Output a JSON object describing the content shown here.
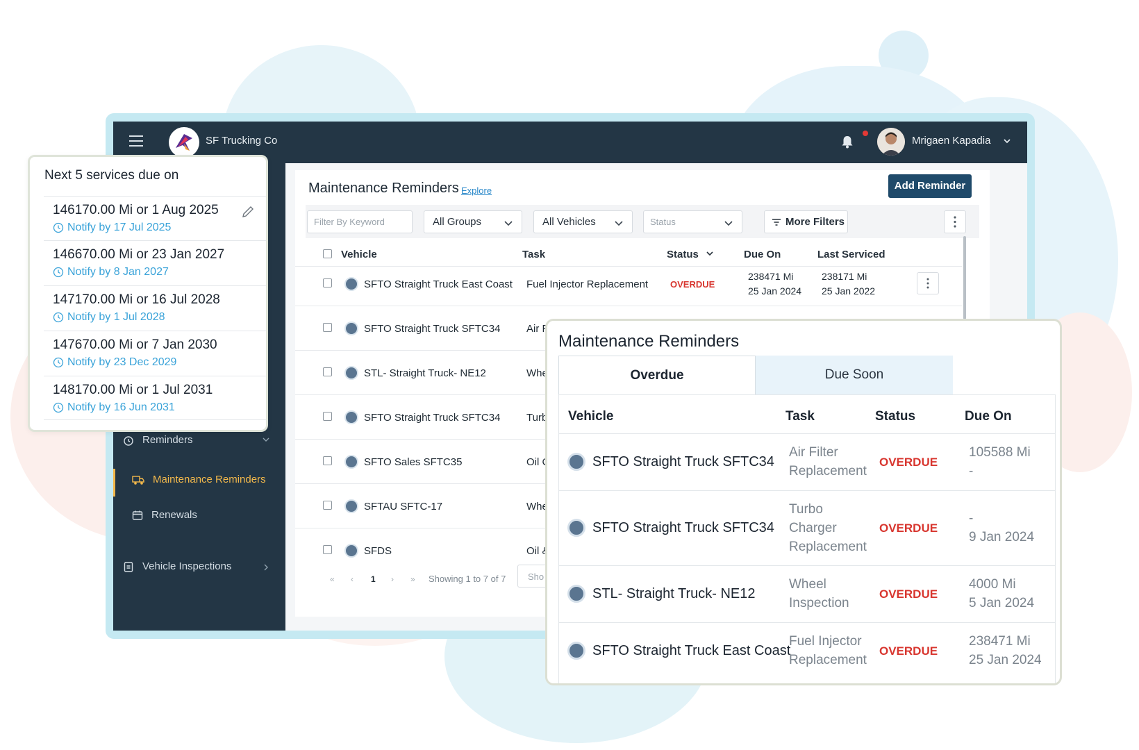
{
  "header": {
    "company": "SF Trucking Co",
    "user_name": "Mrigaen Kapadia"
  },
  "sidebar": {
    "reminders": "Reminders",
    "maintenance_reminders": "Maintenance Reminders",
    "renewals": "Renewals",
    "vehicle_inspections": "Vehicle Inspections"
  },
  "main": {
    "title": "Maintenance Reminders",
    "explore": "Explore",
    "add_reminder": "Add Reminder",
    "filters": {
      "keyword_placeholder": "Filter By Keyword",
      "groups": "All Groups",
      "vehicles": "All Vehicles",
      "status": "Status",
      "more_filters": "More Filters"
    },
    "columns": [
      "Vehicle",
      "Task",
      "Status",
      "Due On",
      "Last Serviced"
    ],
    "rows": [
      {
        "vehicle": "SFTO Straight Truck East Coast",
        "task": "Fuel Injector Replacement",
        "status": "OVERDUE",
        "due_mi": "238471 Mi",
        "due_date": "25 Jan 2024",
        "last_mi": "238171 Mi",
        "last_date": "25 Jan 2022"
      },
      {
        "vehicle": "SFTO Straight Truck SFTC34",
        "task": "Air F"
      },
      {
        "vehicle": "STL- Straight Truck- NE12",
        "task": "Whe"
      },
      {
        "vehicle": "SFTO Straight Truck SFTC34",
        "task": "Turb"
      },
      {
        "vehicle": "SFTO Sales SFTC35",
        "task": "Oil C"
      },
      {
        "vehicle": "SFTAU SFTC-17",
        "task": "Whe"
      },
      {
        "vehicle": "SFDS",
        "task": "Oil &"
      }
    ],
    "pagination": {
      "first": "«",
      "prev": "‹",
      "page": "1",
      "next": "›",
      "last": "»",
      "showing": "Showing 1 to 7 of 7",
      "page_size": "Sho"
    }
  },
  "next_services": {
    "title": "Next 5 services due on",
    "items": [
      {
        "due": "146170.00 Mi or 1 Aug 2025",
        "notify": "Notify by 17 Jul 2025"
      },
      {
        "due": "146670.00 Mi or 23 Jan 2027",
        "notify": "Notify by 8 Jan 2027"
      },
      {
        "due": "147170.00 Mi or 16 Jul 2028",
        "notify": "Notify by 1 Jul 2028"
      },
      {
        "due": "147670.00 Mi or 7 Jan 2030",
        "notify": "Notify by 23 Dec 2029"
      },
      {
        "due": "148170.00 Mi or 1 Jul 2031",
        "notify": "Notify by 16 Jun 2031"
      }
    ]
  },
  "overdue_card": {
    "title": "Maintenance Reminders",
    "tabs": [
      "Overdue",
      "Due Soon"
    ],
    "columns": [
      "Vehicle",
      "Task",
      "Status",
      "Due On"
    ],
    "rows": [
      {
        "vehicle": "SFTO Straight Truck SFTC34",
        "task": [
          "Air Filter",
          "Replacement"
        ],
        "status": "OVERDUE",
        "due": [
          "105588 Mi",
          "-"
        ]
      },
      {
        "vehicle": "SFTO Straight Truck SFTC34",
        "task": [
          "Turbo",
          "Charger",
          "Replacement"
        ],
        "status": "OVERDUE",
        "due": [
          "-",
          "9 Jan 2024"
        ]
      },
      {
        "vehicle": "STL- Straight Truck- NE12",
        "task": [
          "Wheel",
          "Inspection"
        ],
        "status": "OVERDUE",
        "due": [
          "4000 Mi",
          "5 Jan 2024"
        ]
      },
      {
        "vehicle": "SFTO Straight Truck East Coast",
        "task": [
          "Fuel Injector",
          "Replacement"
        ],
        "status": "OVERDUE",
        "due": [
          "238471 Mi",
          "25 Jan 2024"
        ]
      }
    ]
  },
  "colors": {
    "topbar": "#233645",
    "accent": "#1f4a6a",
    "overdue": "#d8362f",
    "notify": "#3aa3d9",
    "active_nav": "#f2b84b"
  }
}
